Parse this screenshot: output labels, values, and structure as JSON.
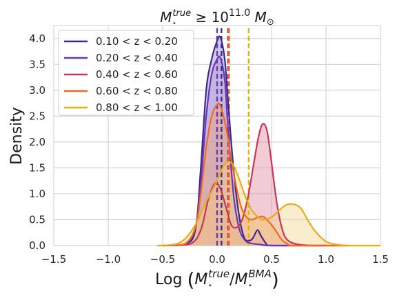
{
  "chart_data": {
    "type": "area",
    "title": {
      "base": "M",
      "base_sub": "⋆",
      "base_sup": "true",
      "relation": " ≥ 10",
      "exp": "11.0",
      "unit": " M",
      "unit_sub": "⊙"
    },
    "xlabel": {
      "prefix": "Log ",
      "num": "M",
      "num_sub": "⋆",
      "num_sup": "true",
      "slash": "/",
      "den": "M",
      "den_sub": "⋆",
      "den_sup": "BMA"
    },
    "ylabel": "Density",
    "xlim": [
      -1.5,
      1.5
    ],
    "ylim": [
      0,
      4.25
    ],
    "x_ticks": [
      -1.5,
      -1.0,
      -0.5,
      0.0,
      0.5,
      1.0,
      1.5
    ],
    "x_tick_labels": [
      "−1.5",
      "−1.0",
      "−0.5",
      "0.0",
      "0.5",
      "1.0",
      "1.5"
    ],
    "y_ticks": [
      0.0,
      0.5,
      1.0,
      1.5,
      2.0,
      2.5,
      3.0,
      3.5,
      4.0
    ],
    "y_tick_labels": [
      "0.0",
      "0.5",
      "1.0",
      "1.5",
      "2.0",
      "2.5",
      "3.0",
      "3.5",
      "4.0"
    ],
    "grid": true,
    "legend_position": "top-left",
    "series": [
      {
        "name": "0.10 < z < 0.20",
        "color": "#3a2a8c",
        "fill_color": "#9a90c8",
        "median": 0.04,
        "points": [
          [
            -0.5,
            0
          ],
          [
            -0.3,
            0.02
          ],
          [
            -0.2,
            0.3
          ],
          [
            -0.15,
            1.5
          ],
          [
            -0.1,
            3.0
          ],
          [
            -0.05,
            3.6
          ],
          [
            0.0,
            3.95
          ],
          [
            0.03,
            4.02
          ],
          [
            0.07,
            3.6
          ],
          [
            0.1,
            2.8
          ],
          [
            0.15,
            1.5
          ],
          [
            0.2,
            0.6
          ],
          [
            0.25,
            0.15
          ],
          [
            0.3,
            0.1
          ],
          [
            0.33,
            0.15
          ],
          [
            0.37,
            0.3
          ],
          [
            0.4,
            0.2
          ],
          [
            0.45,
            0.04
          ],
          [
            0.5,
            0.0
          ],
          [
            1.0,
            0
          ]
        ]
      },
      {
        "name": "0.20 < z < 0.40",
        "color": "#6a35b8",
        "fill_color": "#b49ae0",
        "median": 0.0,
        "points": [
          [
            -0.5,
            0
          ],
          [
            -0.3,
            0.02
          ],
          [
            -0.2,
            0.35
          ],
          [
            -0.15,
            1.2
          ],
          [
            -0.1,
            2.5
          ],
          [
            -0.05,
            3.3
          ],
          [
            0.0,
            3.6
          ],
          [
            0.03,
            3.62
          ],
          [
            0.07,
            3.2
          ],
          [
            0.1,
            2.3
          ],
          [
            0.15,
            1.0
          ],
          [
            0.2,
            0.35
          ],
          [
            0.25,
            0.12
          ],
          [
            0.3,
            0.05
          ],
          [
            0.4,
            0.02
          ],
          [
            0.5,
            0.0
          ],
          [
            1.0,
            0
          ]
        ]
      },
      {
        "name": "0.40 < z < 0.60",
        "color": "#c43855",
        "fill_color": "#e08fa0",
        "median": 0.1,
        "points": [
          [
            -0.5,
            0
          ],
          [
            -0.25,
            0.03
          ],
          [
            -0.15,
            0.3
          ],
          [
            -0.08,
            0.9
          ],
          [
            -0.02,
            1.2
          ],
          [
            0.03,
            1.1
          ],
          [
            0.08,
            0.75
          ],
          [
            0.13,
            0.4
          ],
          [
            0.18,
            0.35
          ],
          [
            0.23,
            0.5
          ],
          [
            0.28,
            0.9
          ],
          [
            0.33,
            1.5
          ],
          [
            0.38,
            2.1
          ],
          [
            0.42,
            2.35
          ],
          [
            0.46,
            2.2
          ],
          [
            0.5,
            1.6
          ],
          [
            0.55,
            0.8
          ],
          [
            0.6,
            0.3
          ],
          [
            0.65,
            0.1
          ],
          [
            0.75,
            0.02
          ],
          [
            0.9,
            0
          ],
          [
            1.2,
            0
          ]
        ]
      },
      {
        "name": "0.60 < z < 0.80",
        "color": "#f06a1e",
        "fill_color": "#f2a470",
        "median": 0.11,
        "points": [
          [
            -0.5,
            0
          ],
          [
            -0.3,
            0.03
          ],
          [
            -0.2,
            0.35
          ],
          [
            -0.15,
            1.0
          ],
          [
            -0.1,
            1.9
          ],
          [
            -0.05,
            2.5
          ],
          [
            0.0,
            2.72
          ],
          [
            0.03,
            2.7
          ],
          [
            0.08,
            2.3
          ],
          [
            0.12,
            1.8
          ],
          [
            0.17,
            1.2
          ],
          [
            0.22,
            0.75
          ],
          [
            0.27,
            0.55
          ],
          [
            0.32,
            0.5
          ],
          [
            0.38,
            0.55
          ],
          [
            0.43,
            0.55
          ],
          [
            0.5,
            0.4
          ],
          [
            0.55,
            0.25
          ],
          [
            0.6,
            0.1
          ],
          [
            0.65,
            0.03
          ],
          [
            0.7,
            0
          ],
          [
            1.2,
            0
          ]
        ]
      },
      {
        "name": "0.80 < z < 1.00",
        "color": "#e5ad1e",
        "fill_color": "#f3d790",
        "median": 0.29,
        "points": [
          [
            -0.55,
            0
          ],
          [
            -0.4,
            0.02
          ],
          [
            -0.3,
            0.12
          ],
          [
            -0.2,
            0.4
          ],
          [
            -0.1,
            0.85
          ],
          [
            0.0,
            1.25
          ],
          [
            0.05,
            1.5
          ],
          [
            0.1,
            1.62
          ],
          [
            0.15,
            1.55
          ],
          [
            0.2,
            1.3
          ],
          [
            0.25,
            1.0
          ],
          [
            0.3,
            0.75
          ],
          [
            0.35,
            0.6
          ],
          [
            0.42,
            0.5
          ],
          [
            0.5,
            0.55
          ],
          [
            0.57,
            0.68
          ],
          [
            0.63,
            0.78
          ],
          [
            0.7,
            0.8
          ],
          [
            0.77,
            0.72
          ],
          [
            0.83,
            0.5
          ],
          [
            0.9,
            0.28
          ],
          [
            1.0,
            0.08
          ],
          [
            1.1,
            0.02
          ],
          [
            1.2,
            0
          ],
          [
            1.5,
            0
          ]
        ]
      }
    ]
  }
}
